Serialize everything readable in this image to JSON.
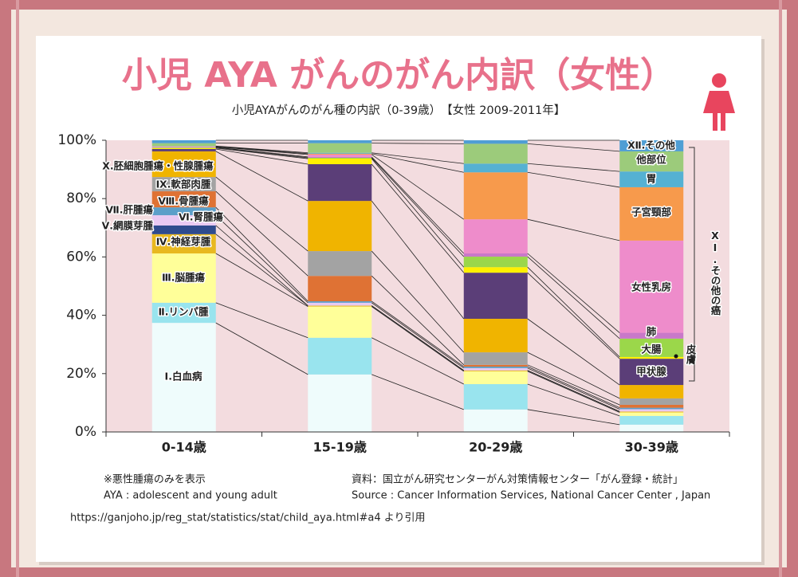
{
  "chart_data": {
    "type": "stacked_bar",
    "title": "小児 AYA がんのがん内訳（女性）",
    "subtitle": "小児AYAがんのがん種の内訳（0-39歳）　【女性 2009-2011年】",
    "categories": [
      "0-14歳",
      "15-19歳",
      "20-29歳",
      "30-39歳"
    ],
    "ylim": [
      0,
      100
    ],
    "yticks": [
      {
        "value": 0,
        "label": "0%"
      },
      {
        "value": 20,
        "label": "20%"
      },
      {
        "value": 40,
        "label": "40%"
      },
      {
        "value": 60,
        "label": "60%"
      },
      {
        "value": 80,
        "label": "80%"
      },
      {
        "value": 100,
        "label": "100%"
      }
    ],
    "series": [
      {
        "name": "Ⅰ.白血病",
        "color": "#effcfc",
        "values": [
          37.4,
          19.7,
          7.7,
          2.5
        ]
      },
      {
        "name": "Ⅱ.リンパ腫",
        "color": "#99e4ee",
        "values": [
          6.9,
          12.6,
          8.7,
          3.0
        ]
      },
      {
        "name": "Ⅲ.脳腫瘍",
        "color": "#ffff99",
        "values": [
          16.9,
          10.7,
          4.4,
          1.2
        ]
      },
      {
        "name": "Ⅳ.神経芽腫",
        "color": "#e8b820",
        "values": [
          6.6,
          0.3,
          0.3,
          0.3
        ]
      },
      {
        "name": "Ⅴ.網膜芽腫",
        "color": "#2f4b8e",
        "values": [
          3.0,
          0,
          0,
          0
        ]
      },
      {
        "name": "Ⅵ.腎腫瘍",
        "color": "#e9c9f2",
        "values": [
          3.5,
          1.0,
          0.8,
          0.8
        ]
      },
      {
        "name": "Ⅶ.肝腫瘍",
        "color": "#5c9fc9",
        "values": [
          2.7,
          0.5,
          0.5,
          0.5
        ]
      },
      {
        "name": "Ⅷ.骨腫瘍",
        "color": "#df7234",
        "values": [
          5.5,
          8.7,
          0.6,
          1.0
        ]
      },
      {
        "name": "Ⅸ.軟部肉腫",
        "color": "#a3a3a3",
        "values": [
          4.9,
          8.5,
          4.3,
          2.2
        ]
      },
      {
        "name": "X.胚細胞腫瘍・性腺腫瘍",
        "color": "#f0b400",
        "values": [
          8.8,
          17.2,
          11.5,
          4.6
        ]
      },
      {
        "name": "甲状腺",
        "color": "#5b3e78",
        "values": [
          0.8,
          12.6,
          15.8,
          9.0
        ]
      },
      {
        "name": "皮膚",
        "color": "#fff000",
        "values": [
          0.3,
          1.9,
          1.9,
          0.6
        ]
      },
      {
        "name": "大腸",
        "color": "#9bd74a",
        "values": [
          0.2,
          0.3,
          3.6,
          6.3
        ]
      },
      {
        "name": "肺",
        "color": "#c978c9",
        "values": [
          0.1,
          0.3,
          1.1,
          2.0
        ]
      },
      {
        "name": "女性乳房",
        "color": "#ee8ccb",
        "values": [
          0.2,
          0.8,
          11.7,
          31.6
        ]
      },
      {
        "name": "子宮頸部",
        "color": "#f79a4c",
        "values": [
          0.1,
          0.3,
          16.1,
          18.3
        ]
      },
      {
        "name": "胃",
        "color": "#55b1d3",
        "values": [
          0.1,
          0.3,
          3.0,
          5.4
        ]
      },
      {
        "name": "他部位",
        "color": "#9ccb7b",
        "values": [
          1.0,
          3.3,
          6.8,
          6.9
        ]
      },
      {
        "name": "Ⅻ.その他",
        "color": "#4f9ed4",
        "values": [
          1.0,
          1.0,
          1.2,
          3.8
        ]
      }
    ],
    "group_label": "XI.その他の癌",
    "notes": [
      "※悪性腫瘍のみを表示",
      "AYA : adolescent and young adult"
    ],
    "source": [
      "資料：国立がん研究センターがん対策情報センター「がん登録・統計」",
      "Source : Cancer Information Services, National Cancer Center , Japan"
    ],
    "citation": "https://ganjoho.jp/reg_stat/statistics/stat/child_aya.html#a4 より引用"
  }
}
